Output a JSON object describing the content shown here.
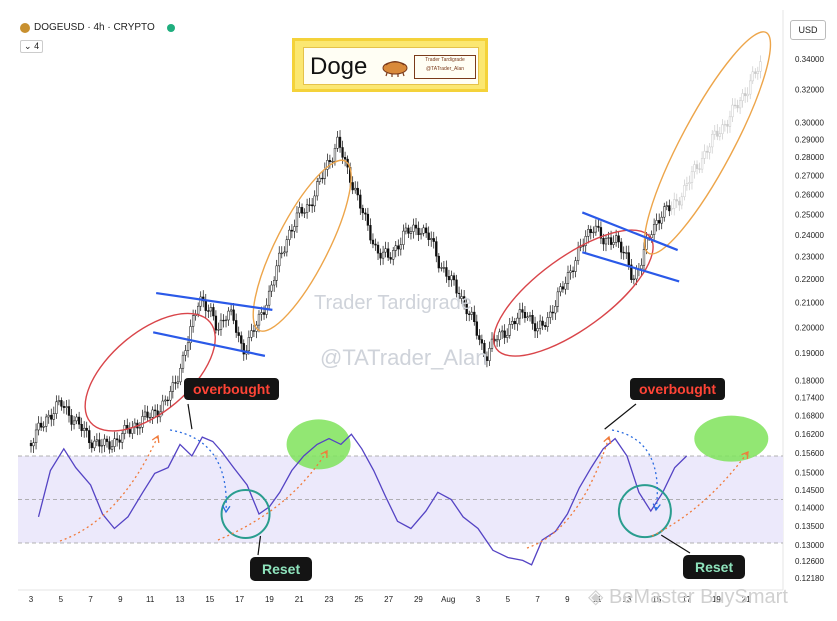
{
  "header": {
    "title": "DOGEUSD · 4h · CRYPTO",
    "indicator_count": "4"
  },
  "currency": "USD",
  "badge": {
    "title": "Doge",
    "tag_line1": "Trader Tardigrade",
    "tag_line2": "@TATrader_Alan"
  },
  "watermarks": {
    "line1": "Trader Tardigrade",
    "line2": "@TATrader_Alan",
    "footer": "BeMaster BuySmart"
  },
  "annotations": {
    "overbought_1": "overbought",
    "overbought_2": "overbought",
    "reset_1": "Reset",
    "reset_2": "Reset"
  },
  "colors": {
    "candle_up": "#0f0f0f",
    "candle_down": "#0f0f0f",
    "projection": "#c9c9c9",
    "indicator_line": "#5443c4",
    "indicator_band": "#ece9fb",
    "red_ellipse": "#d9454a",
    "orange_ellipse": "#eda54a",
    "blue_line": "#2a59e8",
    "green_highlight": "#7fe35a",
    "reset_circle": "#2a9d8f",
    "arrow_orange": "#f07a3a",
    "arrow_blue": "#2a6be0"
  },
  "chart_data": {
    "type": "candlestick",
    "title": "DOGEUSD · 4h · CRYPTO",
    "yscale": "log",
    "ylim": [
      0.12,
      0.345
    ],
    "y_ticks": [
      "0.34000",
      "0.32000",
      "0.30000",
      "0.29000",
      "0.28000",
      "0.27000",
      "0.26000",
      "0.25000",
      "0.24000",
      "0.23000",
      "0.22000",
      "0.21000",
      "0.20000",
      "0.19000",
      "0.18000",
      "0.17400",
      "0.16800",
      "0.16200",
      "0.15600",
      "0.15000",
      "0.14500",
      "0.14000",
      "0.13500",
      "0.13000",
      "0.12600",
      "0.12180"
    ],
    "x_ticks": [
      "3",
      "5",
      "7",
      "9",
      "11",
      "13",
      "15",
      "17",
      "19",
      "21",
      "23",
      "25",
      "27",
      "29",
      "Aug",
      "3",
      "5",
      "7",
      "9",
      "11",
      "13",
      "15",
      "17",
      "19",
      "21"
    ],
    "price_path": [
      [
        1,
        0.159
      ],
      [
        2,
        0.167
      ],
      [
        3,
        0.172
      ],
      [
        4,
        0.166
      ],
      [
        5,
        0.16
      ],
      [
        6,
        0.158
      ],
      [
        7,
        0.161
      ],
      [
        8,
        0.165
      ],
      [
        9,
        0.168
      ],
      [
        10,
        0.172
      ],
      [
        10.6,
        0.178
      ],
      [
        11.2,
        0.188
      ],
      [
        11.8,
        0.2
      ],
      [
        12.3,
        0.213
      ],
      [
        13,
        0.206
      ],
      [
        13.5,
        0.199
      ],
      [
        14.2,
        0.207
      ],
      [
        14.6,
        0.202
      ],
      [
        15.2,
        0.191
      ],
      [
        15.8,
        0.197
      ],
      [
        16.4,
        0.204
      ],
      [
        17,
        0.214
      ],
      [
        17.7,
        0.229
      ],
      [
        18.3,
        0.241
      ],
      [
        19,
        0.25
      ],
      [
        19.7,
        0.255
      ],
      [
        20.3,
        0.265
      ],
      [
        21,
        0.278
      ],
      [
        21.6,
        0.289
      ],
      [
        22.2,
        0.273
      ],
      [
        22.8,
        0.262
      ],
      [
        23.5,
        0.245
      ],
      [
        24.2,
        0.233
      ],
      [
        25,
        0.229
      ],
      [
        26,
        0.24
      ],
      [
        27,
        0.244
      ],
      [
        27.8,
        0.238
      ],
      [
        28.5,
        0.226
      ],
      [
        29.3,
        0.218
      ],
      [
        30,
        0.211
      ],
      [
        30.8,
        0.2
      ],
      [
        31.5,
        0.189
      ],
      [
        32.3,
        0.196
      ],
      [
        33.3,
        0.201
      ],
      [
        34.2,
        0.207
      ],
      [
        35,
        0.198
      ],
      [
        35.8,
        0.205
      ],
      [
        36.6,
        0.215
      ],
      [
        37.4,
        0.227
      ],
      [
        38.2,
        0.238
      ],
      [
        38.8,
        0.246
      ],
      [
        39.5,
        0.235
      ],
      [
        40.2,
        0.24
      ],
      [
        40.8,
        0.231
      ],
      [
        41.4,
        0.22
      ],
      [
        42,
        0.229
      ],
      [
        42.6,
        0.241
      ],
      [
        43.3,
        0.251
      ],
      [
        44,
        0.253
      ]
    ],
    "projection_path": [
      [
        44,
        0.253
      ],
      [
        44.8,
        0.262
      ],
      [
        45.5,
        0.272
      ],
      [
        46.2,
        0.282
      ],
      [
        47,
        0.293
      ],
      [
        47.8,
        0.302
      ],
      [
        48.6,
        0.313
      ],
      [
        49.4,
        0.327
      ],
      [
        50,
        0.336
      ]
    ],
    "indicator": {
      "name": "Stoch RSI",
      "band_upper": 80,
      "band_mid": 50,
      "band_lower": 20,
      "values": [
        [
          0.5,
          38
        ],
        [
          1.3,
          70
        ],
        [
          2.2,
          85
        ],
        [
          3,
          72
        ],
        [
          4,
          60
        ],
        [
          4.8,
          40
        ],
        [
          5.6,
          30
        ],
        [
          6.5,
          38
        ],
        [
          7.5,
          55
        ],
        [
          8.3,
          68
        ],
        [
          9.2,
          72
        ],
        [
          10,
          88
        ],
        [
          10.8,
          80
        ],
        [
          11.5,
          93
        ],
        [
          12.2,
          90
        ],
        [
          12.8,
          83
        ],
        [
          13.6,
          72
        ],
        [
          14.5,
          60
        ],
        [
          15.3,
          40
        ],
        [
          16,
          45
        ],
        [
          16.7,
          55
        ],
        [
          17.5,
          70
        ],
        [
          18.3,
          80
        ],
        [
          19.2,
          88
        ],
        [
          20,
          92
        ],
        [
          20.8,
          88
        ],
        [
          21.5,
          95
        ],
        [
          22.2,
          85
        ],
        [
          23,
          70
        ],
        [
          23.8,
          52
        ],
        [
          24.6,
          35
        ],
        [
          25.5,
          30
        ],
        [
          26.5,
          42
        ],
        [
          27.3,
          55
        ],
        [
          28.2,
          50
        ],
        [
          29,
          38
        ],
        [
          30,
          30
        ],
        [
          31,
          15
        ],
        [
          32,
          10
        ],
        [
          33,
          8
        ],
        [
          33.6,
          5
        ],
        [
          34.3,
          22
        ],
        [
          35.2,
          28
        ],
        [
          36,
          40
        ],
        [
          36.8,
          58
        ],
        [
          37.6,
          72
        ],
        [
          38.4,
          85
        ],
        [
          39.2,
          92
        ],
        [
          40,
          80
        ],
        [
          40.8,
          55
        ],
        [
          41.6,
          42
        ],
        [
          42.4,
          55
        ],
        [
          43.2,
          72
        ],
        [
          44,
          80
        ]
      ]
    }
  }
}
